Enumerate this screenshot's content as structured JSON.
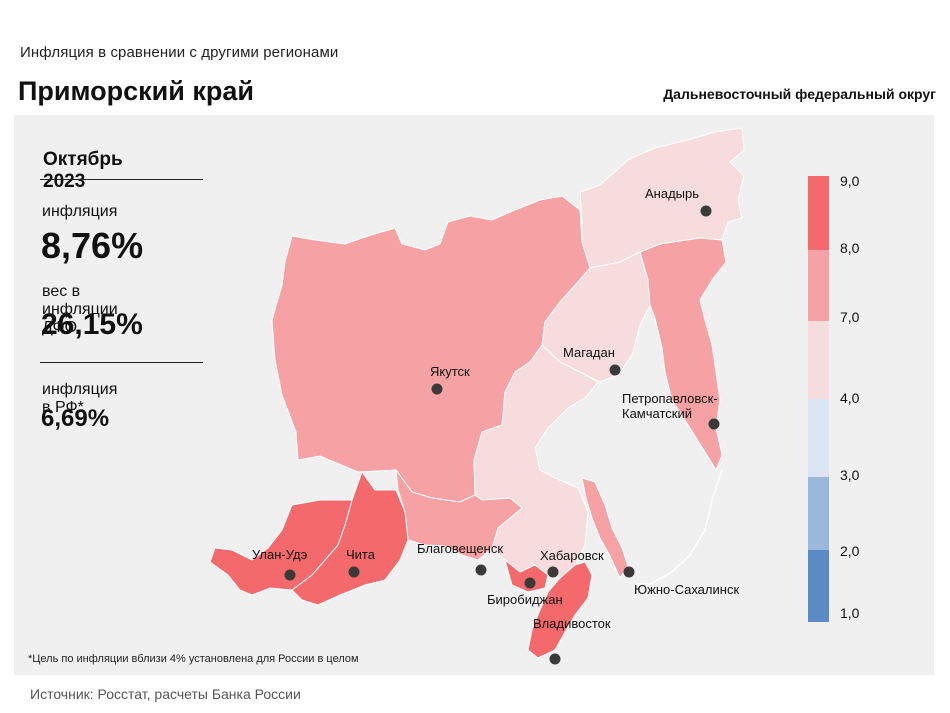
{
  "header": {
    "subtitle": "Инфляция  в сравнении  с другими  регионами",
    "title": "Приморский  край",
    "district": "Дальневосточный  федеральный  округ"
  },
  "info": {
    "period": "Октябрь 2023",
    "inflation_label": "инфляция",
    "inflation_value": "8,76%",
    "weight_label": "вес в инфляции  ДФО",
    "weight_value": "26,15%",
    "rf_label": "инфляция  в РФ*",
    "rf_value": "6,69%"
  },
  "footnote": "*Цель по инфляции вблизи 4% установлена для России в целом",
  "source": "Источник: Росстат, расчеты  Банка  России",
  "legend": {
    "labels": [
      "9,0",
      "8,0",
      "7,0",
      "4,0",
      "3,0",
      "2,0",
      "1,0"
    ],
    "bins": [
      {
        "from": 8.0,
        "to": 9.0,
        "color": "#f4696b"
      },
      {
        "from": 7.0,
        "to": 8.0,
        "color": "#f6a2a4"
      },
      {
        "from": 4.0,
        "to": 7.0,
        "color": "#f6dcdd"
      },
      {
        "from": 3.0,
        "to": 4.0,
        "color": "#dbe5f4"
      },
      {
        "from": 2.0,
        "to": 3.0,
        "color": "#9bb8dc"
      },
      {
        "from": 1.0,
        "to": 2.0,
        "color": "#5b8bc6"
      }
    ]
  },
  "cities": {
    "anadyr": "Анадырь",
    "magadan": "Магадан",
    "yakutsk": "Якутск",
    "petropavlovsk_1": "Петропавловск-",
    "petropavlovsk_2": "Камчатский",
    "ulan_ude": "Улан-Удэ",
    "chita": "Чита",
    "blagoveshchensk": "Благовещенск",
    "khabarovsk": "Хабаровск",
    "birobidzhan": "Биробиджан",
    "yuzhno": "Южно-Сахалинск",
    "vladivostok": "Владивосток"
  },
  "colors": {
    "high": "#f4696b",
    "mid": "#f6a2a4",
    "low": "#f6dcdd",
    "panel": "#f0f0f0"
  }
}
